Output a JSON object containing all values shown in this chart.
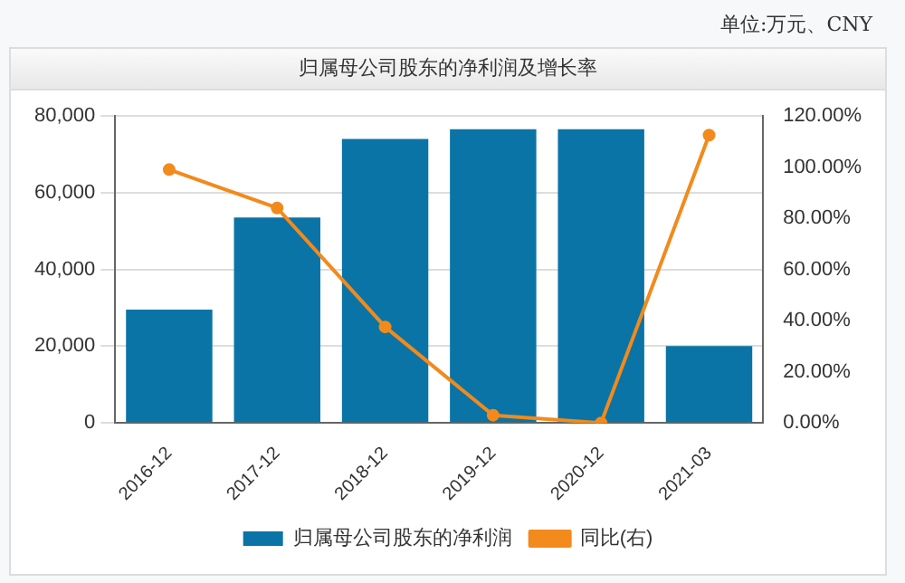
{
  "chart_data": {
    "type": "bar",
    "title": "归属母公司股东的净利润及增长率",
    "annotations": [
      "单位:万元、CNY"
    ],
    "categories": [
      "2016-12",
      "2017-12",
      "2018-12",
      "2019-12",
      "2020-12",
      "2021-03"
    ],
    "series": [
      {
        "name": "归属母公司股东的净利润",
        "color": "#0a74a6",
        "values": [
          29500,
          53500,
          74000,
          76500,
          76500,
          20000
        ]
      },
      {
        "name": "同比(右)",
        "type": "line",
        "axis": "y2",
        "color": "#f28a1c",
        "values": [
          99,
          84,
          37.5,
          3,
          0,
          112.5
        ]
      }
    ],
    "ylim": [
      0,
      80000
    ],
    "yticks": [
      0,
      {
        "value": 20000,
        "label": "20,000"
      },
      {
        "value": 40000,
        "label": "40,000"
      },
      {
        "value": 60000,
        "label": "60,000"
      },
      {
        "value": 80000,
        "label": "80,000"
      }
    ],
    "y2lim": [
      0,
      120
    ],
    "y2ticks": [
      {
        "value": 0,
        "label": "0.00%"
      },
      {
        "value": 20,
        "label": "20.00%"
      },
      {
        "value": 40,
        "label": "40.00%"
      },
      {
        "value": 60,
        "label": "60.00%"
      },
      {
        "value": 80,
        "label": "80.00%"
      },
      {
        "value": 100,
        "label": "100.00%"
      },
      {
        "value": 120,
        "label": "120.00%"
      }
    ],
    "grid": "y",
    "legend": "bottom",
    "marker": "circle"
  }
}
